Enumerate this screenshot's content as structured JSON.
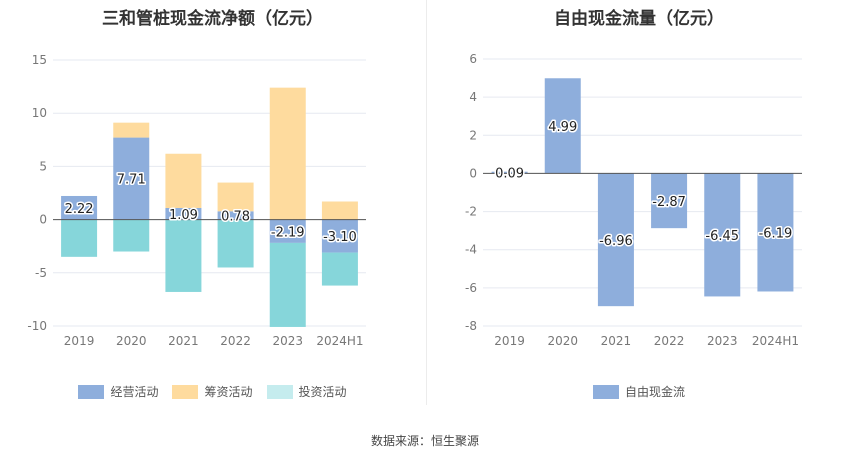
{
  "source_text": "数据来源：恒生聚源",
  "chart_data": [
    {
      "type": "bar",
      "stacked": true,
      "title": "三和管桩现金流净额（亿元）",
      "categories": [
        "2019",
        "2020",
        "2021",
        "2022",
        "2023",
        "2024H1"
      ],
      "ylim": [
        -10,
        15
      ],
      "yticks": [
        15,
        10,
        5,
        0,
        -5,
        -10
      ],
      "grid": true,
      "legend_position": "bottom",
      "series": [
        {
          "name": "经营活动",
          "color": "#8eaedc",
          "values": [
            2.22,
            7.71,
            1.09,
            0.78,
            -2.19,
            -3.1
          ],
          "labels": [
            "2.22",
            "7.71",
            "1.09",
            "0.78",
            "-2.19",
            "-3.10"
          ]
        },
        {
          "name": "筹资活动",
          "color": "#fedb9e",
          "values": [
            0,
            1.4,
            5.1,
            2.7,
            12.4,
            1.7
          ]
        },
        {
          "name": "投资活动",
          "color": "#86d6da",
          "values": [
            -3.5,
            -3.0,
            -6.8,
            -4.5,
            -7.9,
            -3.1
          ]
        }
      ],
      "legend_colors": [
        "#8eaedc",
        "#fedb9e",
        "#c5ecee"
      ]
    },
    {
      "type": "bar",
      "title": "自由现金流量（亿元）",
      "categories": [
        "2019",
        "2020",
        "2021",
        "2022",
        "2023",
        "2024H1"
      ],
      "ylim": [
        -8,
        6
      ],
      "yticks": [
        6,
        4,
        2,
        0,
        -2,
        -4,
        -6,
        -8
      ],
      "grid": true,
      "legend_position": "bottom",
      "series": [
        {
          "name": "自由现金流",
          "color": "#8eaedc",
          "values": [
            0.09,
            4.99,
            -6.96,
            -2.87,
            -6.45,
            -6.19
          ],
          "labels": [
            "0.09",
            "4.99",
            "-6.96",
            "-2.87",
            "-6.45",
            "-6.19"
          ]
        }
      ]
    }
  ]
}
